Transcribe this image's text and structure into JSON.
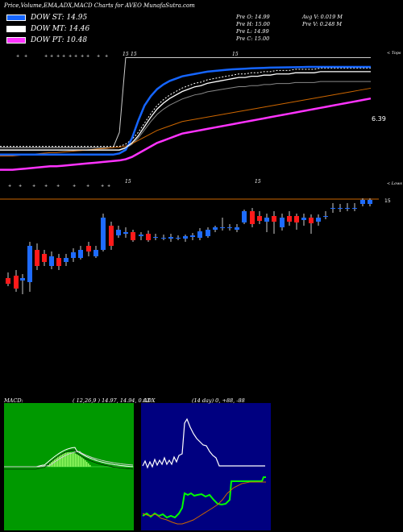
{
  "header": {
    "title": "Price,Volume,EMA,ADX,MACD Charts for AVEO MunafaSutra.com"
  },
  "legend": [
    {
      "label": "DOW ST: 14.95",
      "color": "#1565ff"
    },
    {
      "label": "DOW MT: 14.46",
      "color": "#ffffff"
    },
    {
      "label": "DOW PT: 10.48",
      "color": "#ff33ff"
    }
  ],
  "stats": {
    "o": "Pre   O: 14.99",
    "h": "Pre   H: 15.00",
    "l": "Pre   L: 14.99",
    "c": "Pre   C: 15.00",
    "avgv": "Avg V: 0.019 M",
    "prev": "Pre   V: 0.248  M"
  },
  "price_labels": {
    "tops": "< Tops",
    "lows": "< Lows",
    "ema_value": "6.39",
    "last_price": "15"
  },
  "chart_data": [
    {
      "type": "line",
      "title": "Price,Volume,EMA,ADX,MACD Charts for AVEO",
      "description_series": [
        "price",
        "DOW ST",
        "DOW MT",
        "DOW PT",
        "EMA"
      ],
      "x_count": 60,
      "series": [
        {
          "name": "DOW ST",
          "color": "#1565ff",
          "values": [
            0.16,
            0.16,
            0.16,
            0.16,
            0.16,
            0.16,
            0.16,
            0.16,
            0.16,
            0.16,
            0.16,
            0.16,
            0.16,
            0.16,
            0.16,
            0.16,
            0.16,
            0.16,
            0.16,
            0.17,
            0.2,
            0.3,
            0.45,
            0.58,
            0.66,
            0.72,
            0.76,
            0.79,
            0.81,
            0.83,
            0.84,
            0.85,
            0.86,
            0.87,
            0.875,
            0.88,
            0.885,
            0.89,
            0.892,
            0.895,
            0.898,
            0.9,
            0.902,
            0.904,
            0.905,
            0.906,
            0.907,
            0.908,
            0.909,
            0.91,
            0.91,
            0.91,
            0.91,
            0.91,
            0.91,
            0.91,
            0.91,
            0.91,
            0.91,
            0.91
          ]
        },
        {
          "name": "DOW MT",
          "color": "#ffffff",
          "values": [
            0.2,
            0.2,
            0.2,
            0.2,
            0.2,
            0.2,
            0.2,
            0.2,
            0.2,
            0.2,
            0.2,
            0.2,
            0.2,
            0.2,
            0.2,
            0.2,
            0.2,
            0.2,
            0.2,
            0.2,
            0.22,
            0.26,
            0.32,
            0.4,
            0.48,
            0.55,
            0.6,
            0.64,
            0.67,
            0.7,
            0.72,
            0.74,
            0.75,
            0.77,
            0.78,
            0.79,
            0.8,
            0.81,
            0.82,
            0.82,
            0.83,
            0.83,
            0.84,
            0.84,
            0.85,
            0.85,
            0.85,
            0.86,
            0.86,
            0.86,
            0.86,
            0.87,
            0.87,
            0.87,
            0.87,
            0.87,
            0.87,
            0.87,
            0.87,
            0.87
          ]
        },
        {
          "name": "DOW PT",
          "color": "#ff33ff",
          "values": [
            0.03,
            0.03,
            0.03,
            0.035,
            0.04,
            0.045,
            0.05,
            0.055,
            0.06,
            0.06,
            0.065,
            0.07,
            0.075,
            0.08,
            0.085,
            0.09,
            0.095,
            0.1,
            0.105,
            0.11,
            0.12,
            0.14,
            0.17,
            0.2,
            0.23,
            0.26,
            0.28,
            0.3,
            0.32,
            0.34,
            0.35,
            0.36,
            0.37,
            0.38,
            0.39,
            0.4,
            0.41,
            0.42,
            0.43,
            0.44,
            0.45,
            0.46,
            0.47,
            0.48,
            0.49,
            0.5,
            0.51,
            0.52,
            0.53,
            0.54,
            0.55,
            0.56,
            0.57,
            0.58,
            0.59,
            0.6,
            0.61,
            0.62,
            0.63,
            0.64
          ]
        }
      ]
    }
  ],
  "macd_panel": {
    "label": "MACD:",
    "params": "( 12,26,9 ) 14.97,  14.94,  0.03"
  },
  "adx_panel": {
    "label": "ADX",
    "params": "(14  day) 0,  +88, -88"
  },
  "top_markers": "15",
  "low_markers": "15"
}
